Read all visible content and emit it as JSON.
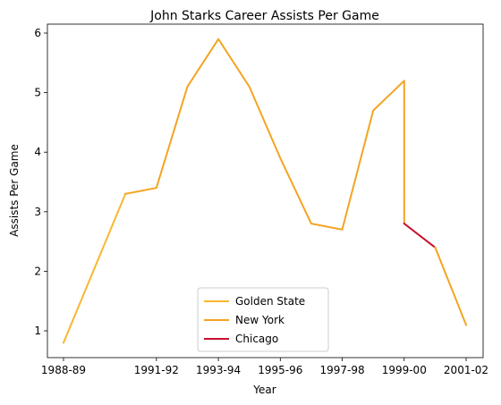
{
  "chart_data": {
    "type": "line",
    "title": "John Starks  Career Assists Per Game",
    "xlabel": "Year",
    "ylabel": "Assists Per Game",
    "x_ticks": [
      "1988-89",
      "1991-92",
      "1993-94",
      "1995-96",
      "1997-98",
      "1999-00",
      "2001-02"
    ],
    "y_ticks": [
      "1",
      "2",
      "3",
      "4",
      "5",
      "6"
    ],
    "ylim": [
      0.55,
      6.15
    ],
    "grid": false,
    "legend_position": "lower center",
    "series": [
      {
        "name": "Golden State",
        "color": "#f7b731",
        "points": [
          {
            "season": "1988-89",
            "value": 0.8
          },
          {
            "season": "1990-91",
            "value": 3.3
          }
        ]
      },
      {
        "name": "New York",
        "color": "#f4a422",
        "points": [
          {
            "season": "1990-91",
            "value": 3.3
          },
          {
            "season": "1991-92",
            "value": 3.4
          },
          {
            "season": "1992-93",
            "value": 5.1
          },
          {
            "season": "1993-94",
            "value": 5.9
          },
          {
            "season": "1994-95",
            "value": 5.1
          },
          {
            "season": "1995-96",
            "value": 3.9
          },
          {
            "season": "1996-97",
            "value": 2.8
          },
          {
            "season": "1997-98",
            "value": 2.7
          },
          {
            "season": "1998-99",
            "value": 4.7
          },
          {
            "season": "1999-00",
            "value": 5.2
          },
          {
            "season": "1999-00",
            "value": 2.8
          }
        ]
      },
      {
        "name": "Chicago",
        "color": "#c8102e",
        "points": [
          {
            "season": "1999-00",
            "value": 2.8
          },
          {
            "season": "2000-01",
            "value": 2.4
          }
        ]
      },
      {
        "name": "",
        "color": "#f4a422",
        "points": [
          {
            "season": "2000-01",
            "value": 2.4
          },
          {
            "season": "2001-02",
            "value": 1.1
          }
        ]
      }
    ]
  }
}
